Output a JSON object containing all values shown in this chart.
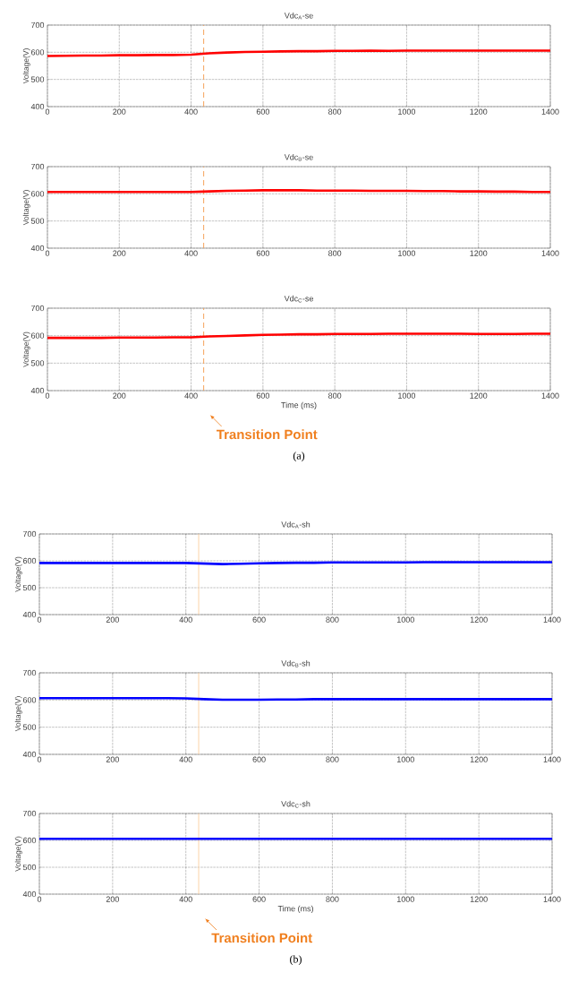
{
  "chart_data": [
    {
      "type": "line",
      "title": "Vdc$_{A}$-se",
      "ylabel": "Voltage(V)",
      "x": [
        0,
        50,
        100,
        150,
        200,
        250,
        300,
        350,
        400,
        450,
        500,
        550,
        600,
        650,
        700,
        750,
        800,
        850,
        900,
        950,
        1000,
        1050,
        1100,
        1150,
        1200,
        1250,
        1300,
        1350,
        1400
      ],
      "xlim": [
        0,
        1400
      ],
      "ylim": [
        400,
        700
      ],
      "xticks": [
        0,
        200,
        400,
        600,
        800,
        1000,
        1200,
        1400
      ],
      "yticks": [
        400,
        500,
        600,
        700
      ],
      "grid": true,
      "series": [
        {
          "color": "#ff0000",
          "values": [
            586,
            587,
            588,
            588,
            589,
            589,
            590,
            590,
            591,
            596,
            599,
            601,
            602,
            603,
            604,
            604,
            605,
            605,
            606,
            605,
            606,
            606,
            606,
            606,
            606,
            606,
            606,
            606,
            606
          ]
        }
      ],
      "ref_lines": [
        {
          "axis": "x",
          "value": 435,
          "color": "#f5a35a",
          "line_style": "dashed"
        }
      ]
    },
    {
      "type": "line",
      "title": "Vdc$_{B}$-se",
      "ylabel": "Voltage(V)",
      "x": [
        0,
        50,
        100,
        150,
        200,
        250,
        300,
        350,
        400,
        450,
        500,
        550,
        600,
        650,
        700,
        750,
        800,
        850,
        900,
        950,
        1000,
        1050,
        1100,
        1150,
        1200,
        1250,
        1300,
        1350,
        1400
      ],
      "xlim": [
        0,
        1400
      ],
      "ylim": [
        400,
        700
      ],
      "xticks": [
        0,
        200,
        400,
        600,
        800,
        1000,
        1200,
        1400
      ],
      "yticks": [
        400,
        500,
        600,
        700
      ],
      "grid": true,
      "series": [
        {
          "color": "#ff0000",
          "values": [
            607,
            607,
            607,
            607,
            607,
            607,
            607,
            607,
            607,
            609,
            611,
            612,
            613,
            613,
            613,
            612,
            612,
            612,
            611,
            611,
            611,
            610,
            610,
            609,
            609,
            608,
            608,
            607,
            607
          ]
        }
      ],
      "ref_lines": [
        {
          "axis": "x",
          "value": 435,
          "color": "#f5a35a",
          "line_style": "dashed"
        }
      ]
    },
    {
      "type": "line",
      "title": "Vdc$_{C}$-se",
      "xlabel": "Time (ms)",
      "ylabel": "Voltage(V)",
      "x": [
        0,
        50,
        100,
        150,
        200,
        250,
        300,
        350,
        400,
        450,
        500,
        550,
        600,
        650,
        700,
        750,
        800,
        850,
        900,
        950,
        1000,
        1050,
        1100,
        1150,
        1200,
        1250,
        1300,
        1350,
        1400
      ],
      "xlim": [
        0,
        1400
      ],
      "ylim": [
        400,
        700
      ],
      "xticks": [
        0,
        200,
        400,
        600,
        800,
        1000,
        1200,
        1400
      ],
      "yticks": [
        400,
        500,
        600,
        700
      ],
      "grid": true,
      "series": [
        {
          "color": "#ff0000",
          "values": [
            592,
            592,
            592,
            592,
            593,
            593,
            593,
            594,
            594,
            597,
            599,
            601,
            603,
            604,
            605,
            605,
            606,
            606,
            606,
            607,
            607,
            607,
            607,
            607,
            606,
            606,
            606,
            607,
            607
          ]
        }
      ],
      "ref_lines": [
        {
          "axis": "x",
          "value": 435,
          "color": "#f5a35a",
          "line_style": "dashed"
        }
      ],
      "annotations": [
        "Transition Point",
        "(a)"
      ]
    },
    {
      "type": "line",
      "title": "Vdc$_{A}$-sh",
      "ylabel": "Voltage(V)",
      "x": [
        0,
        50,
        100,
        150,
        200,
        250,
        300,
        350,
        400,
        450,
        500,
        550,
        600,
        650,
        700,
        750,
        800,
        850,
        900,
        950,
        1000,
        1050,
        1100,
        1150,
        1200,
        1250,
        1300,
        1350,
        1400
      ],
      "xlim": [
        0,
        1400
      ],
      "ylim": [
        400,
        700
      ],
      "xticks": [
        0,
        200,
        400,
        600,
        800,
        1000,
        1200,
        1400
      ],
      "yticks": [
        400,
        500,
        600,
        700
      ],
      "grid": true,
      "series": [
        {
          "color": "#0000ff",
          "values": [
            592,
            592,
            592,
            592,
            592,
            592,
            592,
            592,
            592,
            590,
            588,
            589,
            591,
            592,
            593,
            593,
            594,
            594,
            594,
            594,
            594,
            595,
            595,
            595,
            595,
            595,
            595,
            595,
            595
          ]
        }
      ],
      "ref_lines": [
        {
          "axis": "x",
          "value": 435,
          "color": "#fbd3a8",
          "line_style": "solid"
        }
      ]
    },
    {
      "type": "line",
      "title": "Vdc$_{B}$-sh",
      "ylabel": "Voltage(V)",
      "x": [
        0,
        50,
        100,
        150,
        200,
        250,
        300,
        350,
        400,
        450,
        500,
        550,
        600,
        650,
        700,
        750,
        800,
        850,
        900,
        950,
        1000,
        1050,
        1100,
        1150,
        1200,
        1250,
        1300,
        1350,
        1400
      ],
      "xlim": [
        0,
        1400
      ],
      "ylim": [
        400,
        700
      ],
      "xticks": [
        0,
        200,
        400,
        600,
        800,
        1000,
        1200,
        1400
      ],
      "yticks": [
        400,
        500,
        600,
        700
      ],
      "grid": true,
      "series": [
        {
          "color": "#0000ff",
          "values": [
            607,
            607,
            607,
            607,
            607,
            607,
            607,
            607,
            606,
            603,
            601,
            601,
            601,
            602,
            602,
            603,
            603,
            603,
            603,
            603,
            603,
            603,
            603,
            603,
            603,
            603,
            603,
            603,
            603
          ]
        }
      ],
      "ref_lines": [
        {
          "axis": "x",
          "value": 435,
          "color": "#fbd3a8",
          "line_style": "solid"
        }
      ]
    },
    {
      "type": "line",
      "title": "Vdc$_{C}$-sh",
      "xlabel": "Time (ms)",
      "ylabel": "Voltage(V)",
      "x": [
        0,
        50,
        100,
        150,
        200,
        250,
        300,
        350,
        400,
        450,
        500,
        550,
        600,
        650,
        700,
        750,
        800,
        850,
        900,
        950,
        1000,
        1050,
        1100,
        1150,
        1200,
        1250,
        1300,
        1350,
        1400
      ],
      "xlim": [
        0,
        1400
      ],
      "ylim": [
        400,
        700
      ],
      "xticks": [
        0,
        200,
        400,
        600,
        800,
        1000,
        1200,
        1400
      ],
      "yticks": [
        400,
        500,
        600,
        700
      ],
      "grid": true,
      "series": [
        {
          "color": "#0000ff",
          "values": [
            606,
            606,
            606,
            606,
            606,
            606,
            606,
            606,
            606,
            606,
            606,
            606,
            606,
            606,
            606,
            606,
            606,
            606,
            606,
            606,
            606,
            606,
            606,
            606,
            606,
            606,
            606,
            606,
            606
          ]
        }
      ],
      "ref_lines": [
        {
          "axis": "x",
          "value": 435,
          "color": "#fbd3a8",
          "line_style": "solid"
        }
      ],
      "annotations": [
        "Transition Point",
        "(b)"
      ]
    }
  ]
}
